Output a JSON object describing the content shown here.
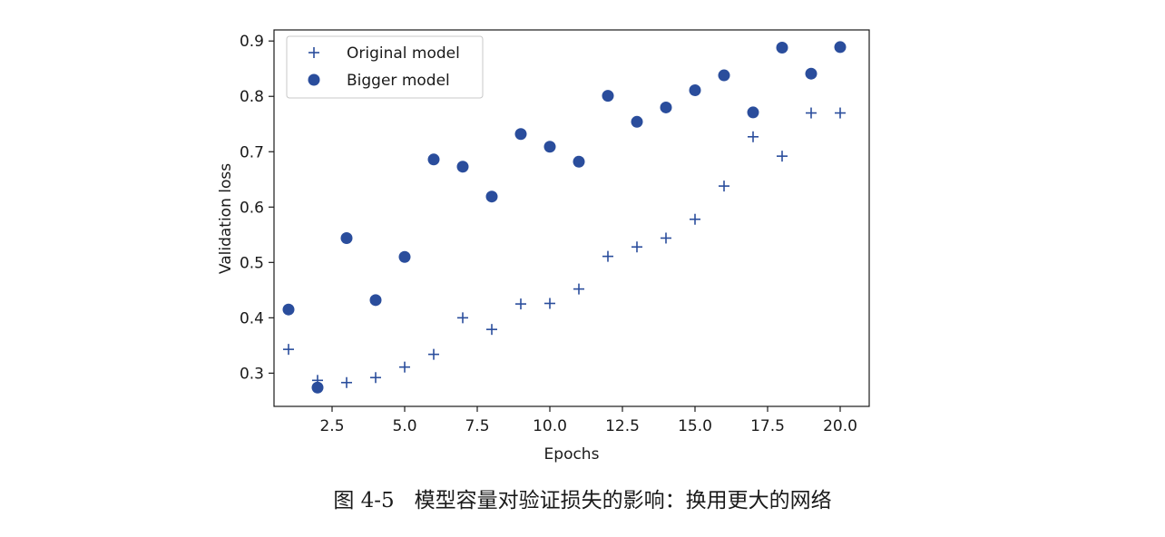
{
  "caption": "图 4-5   模型容量对验证损失的影响：换用更大的网络",
  "colors": {
    "marker": "#2a4d9c",
    "axis": "#1a1a1a"
  },
  "chart_data": {
    "type": "scatter",
    "xlabel": "Epochs",
    "ylabel": "Validation loss",
    "xlim": [
      0.5,
      21.0
    ],
    "ylim": [
      0.24,
      0.92
    ],
    "xticks": [
      2.5,
      5.0,
      7.5,
      10.0,
      12.5,
      15.0,
      17.5,
      20.0
    ],
    "xtick_labels": [
      "2.5",
      "5.0",
      "7.5",
      "10.0",
      "12.5",
      "15.0",
      "17.5",
      "20.0"
    ],
    "yticks": [
      0.3,
      0.4,
      0.5,
      0.6,
      0.7,
      0.8,
      0.9
    ],
    "ytick_labels": [
      "0.3",
      "0.4",
      "0.5",
      "0.6",
      "0.7",
      "0.8",
      "0.9"
    ],
    "grid": false,
    "legend_position": "top-left",
    "series": [
      {
        "name": "Original model",
        "marker": "plus",
        "x": [
          1,
          2,
          3,
          4,
          5,
          6,
          7,
          8,
          9,
          10,
          11,
          12,
          13,
          14,
          15,
          16,
          17,
          18,
          19,
          20
        ],
        "y": [
          0.343,
          0.287,
          0.283,
          0.292,
          0.311,
          0.334,
          0.4,
          0.379,
          0.425,
          0.426,
          0.452,
          0.511,
          0.528,
          0.544,
          0.578,
          0.638,
          0.727,
          0.692,
          0.77,
          0.77
        ]
      },
      {
        "name": "Bigger model",
        "marker": "circle",
        "x": [
          1,
          2,
          3,
          4,
          5,
          6,
          7,
          8,
          9,
          10,
          11,
          12,
          13,
          14,
          15,
          16,
          17,
          18,
          19,
          20
        ],
        "y": [
          0.415,
          0.274,
          0.544,
          0.432,
          0.51,
          0.686,
          0.673,
          0.619,
          0.732,
          0.709,
          0.682,
          0.801,
          0.754,
          0.78,
          0.811,
          0.838,
          0.771,
          0.888,
          0.841,
          0.889
        ]
      }
    ]
  }
}
